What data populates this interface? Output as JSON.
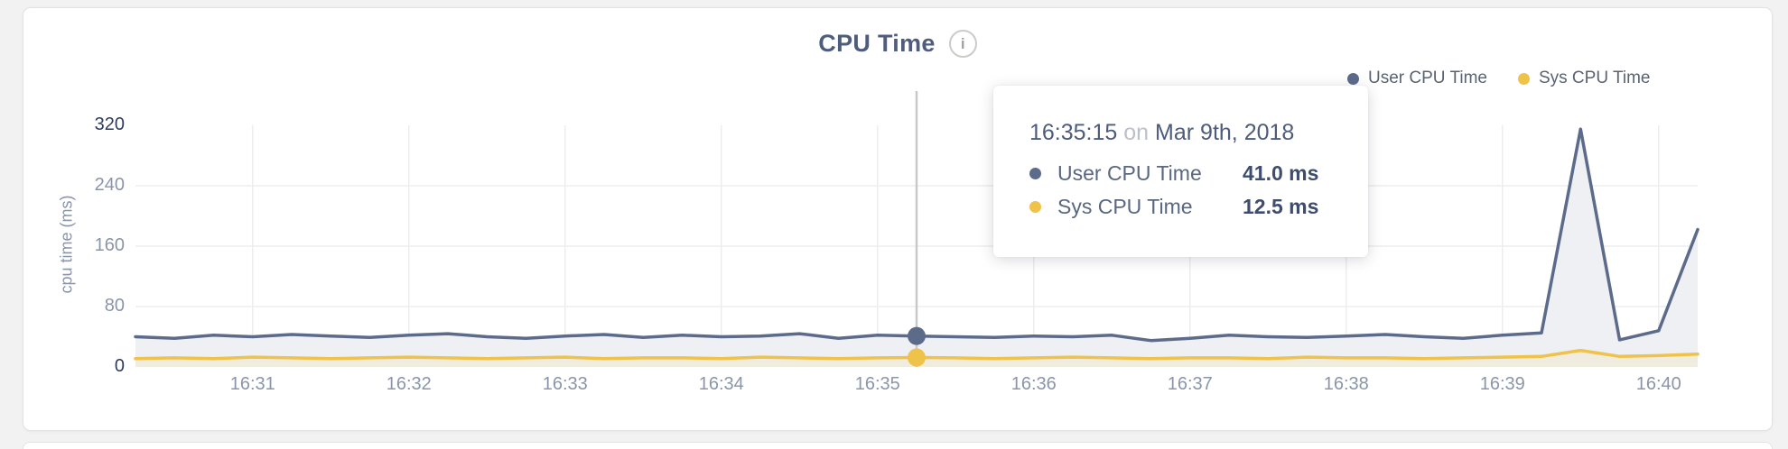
{
  "page": {
    "background": "#f2f2f2"
  },
  "card": {
    "title": "CPU Time",
    "info_icon_glyph": "i"
  },
  "legend": {
    "items": [
      {
        "label": "User CPU Time",
        "color": "#5d6b8b"
      },
      {
        "label": "Sys CPU Time",
        "color": "#efc24a"
      }
    ]
  },
  "tooltip": {
    "time": "16:35:15",
    "connector": "on",
    "date": "Mar 9th, 2018",
    "rows": [
      {
        "label": "User CPU Time",
        "value": "41.0 ms",
        "color": "#5d6b8b"
      },
      {
        "label": "Sys CPU Time",
        "value": "12.5 ms",
        "color": "#efc24a"
      }
    ]
  },
  "chart_data": {
    "type": "area",
    "title": "CPU Time",
    "xlabel": "",
    "ylabel": "cpu time (ms)",
    "ylim": [
      0,
      320
    ],
    "yticks": [
      0,
      80,
      160,
      240,
      320
    ],
    "ytick_gridlines": [
      80,
      160,
      240
    ],
    "ytick_dark": [
      0,
      320
    ],
    "xticks": [
      "16:31",
      "16:32",
      "16:33",
      "16:34",
      "16:35",
      "16:36",
      "16:37",
      "16:38",
      "16:39",
      "16:40"
    ],
    "grid": true,
    "legend_position": "top-right",
    "x": [
      "16:30:15",
      "16:30:30",
      "16:30:45",
      "16:31:00",
      "16:31:15",
      "16:31:30",
      "16:31:45",
      "16:32:00",
      "16:32:15",
      "16:32:30",
      "16:32:45",
      "16:33:00",
      "16:33:15",
      "16:33:30",
      "16:33:45",
      "16:34:00",
      "16:34:15",
      "16:34:30",
      "16:34:45",
      "16:35:00",
      "16:35:15",
      "16:35:30",
      "16:35:45",
      "16:36:00",
      "16:36:15",
      "16:36:30",
      "16:36:45",
      "16:37:00",
      "16:37:15",
      "16:37:30",
      "16:37:45",
      "16:38:00",
      "16:38:15",
      "16:38:30",
      "16:38:45",
      "16:39:00",
      "16:39:15",
      "16:39:30",
      "16:39:45",
      "16:40:00",
      "16:40:15"
    ],
    "series": [
      {
        "name": "User CPU Time",
        "color": "#5d6b8b",
        "fill": "#eef0f4",
        "values": [
          40,
          38,
          42,
          40,
          43,
          41,
          39,
          42,
          44,
          40,
          38,
          41,
          43,
          39,
          42,
          40,
          41,
          44,
          38,
          42,
          41,
          40,
          39,
          41,
          40,
          42,
          35,
          38,
          42,
          40,
          39,
          41,
          43,
          40,
          38,
          42,
          45,
          315,
          36,
          48,
          182
        ]
      },
      {
        "name": "Sys CPU Time",
        "color": "#efc24a",
        "fill": "#f1ece0",
        "values": [
          11,
          12,
          11,
          13,
          12,
          11,
          12,
          13,
          12,
          11,
          12,
          13,
          11,
          12,
          12,
          11,
          13,
          12,
          11,
          12,
          12.5,
          12,
          11,
          12,
          13,
          12,
          11,
          12,
          12,
          11,
          13,
          12,
          12,
          11,
          12,
          13,
          14,
          22,
          14,
          15,
          17
        ]
      }
    ],
    "hover": {
      "index": 20,
      "line_color": "#c9c9c9"
    },
    "gridline_color": "#ededed"
  }
}
